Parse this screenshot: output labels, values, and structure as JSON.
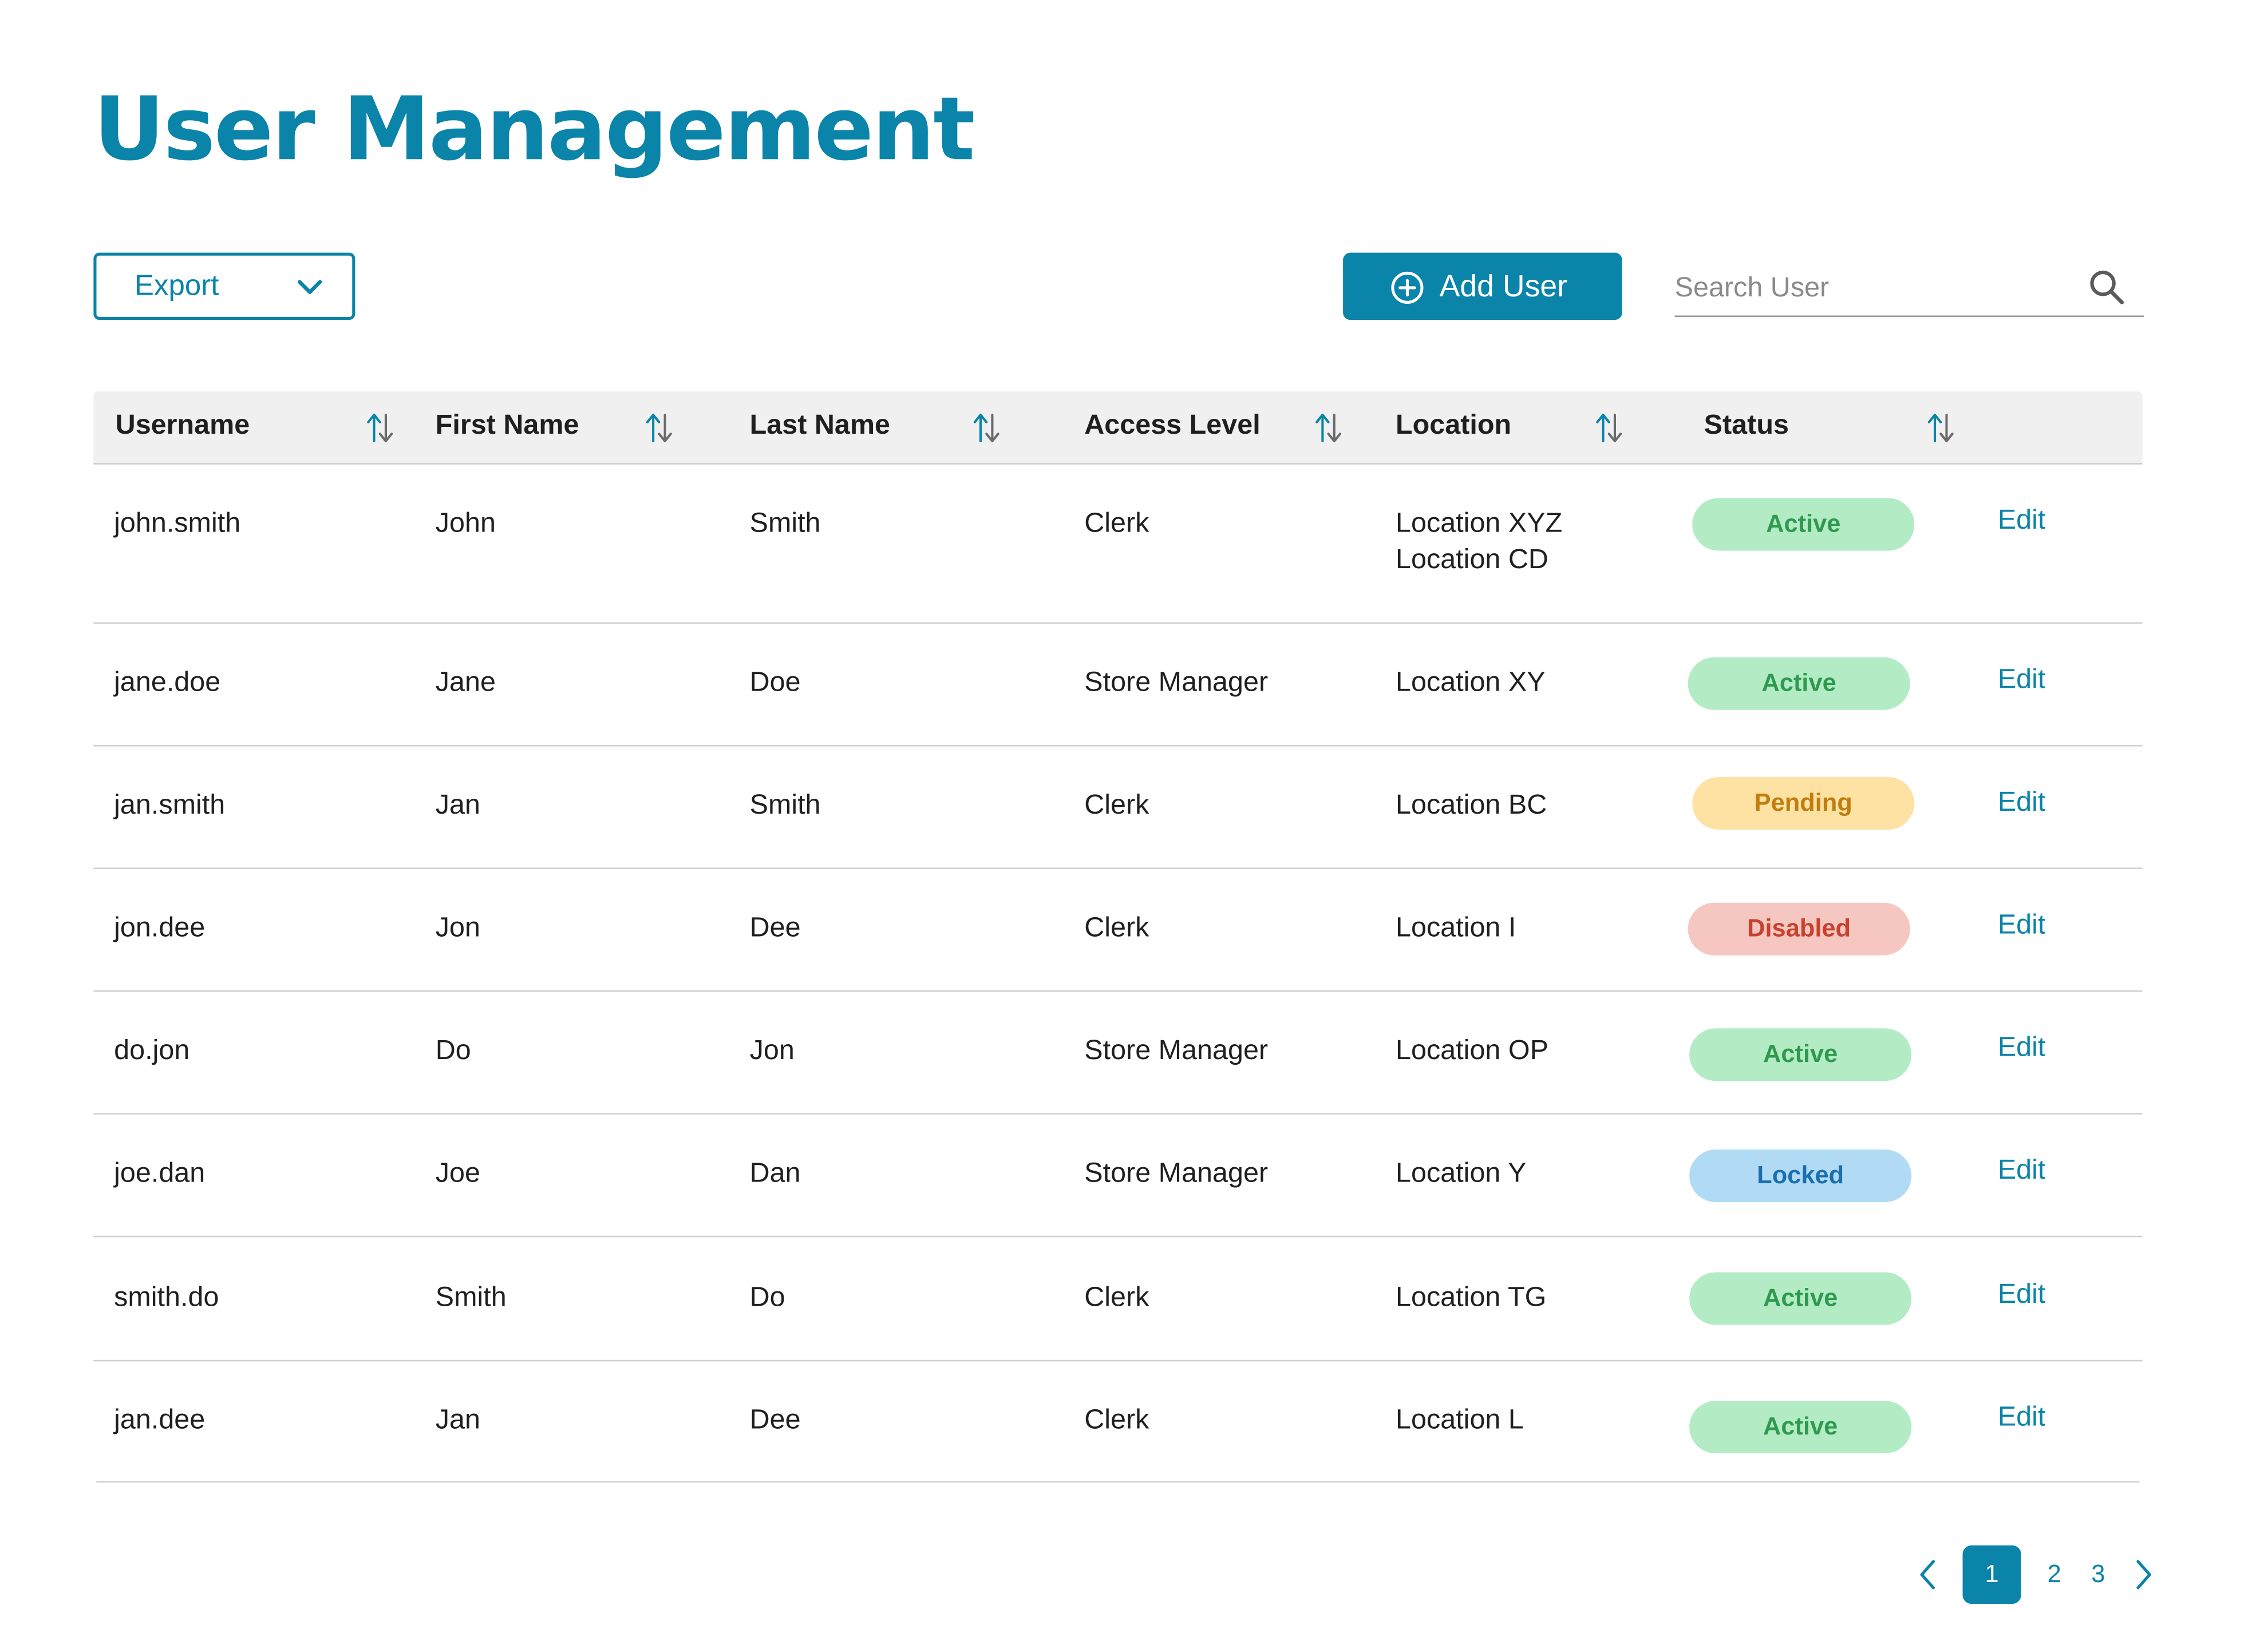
{
  "title": "User Management",
  "toolbar": {
    "export_label": "Export",
    "add_user_label": "Add User",
    "search_placeholder": "Search User"
  },
  "colors": {
    "accent": "#0a84a8",
    "status_active_bg": "#b3ebc4",
    "status_active_fg": "#2f9a4f",
    "status_pending_bg": "#fde2a3",
    "status_pending_fg": "#c17d0e",
    "status_disabled_bg": "#f6c7c1",
    "status_disabled_fg": "#c8412e",
    "status_locked_bg": "#b1dbf5",
    "status_locked_fg": "#1a6fae"
  },
  "table": {
    "columns": [
      "Username",
      "First Name",
      "Last Name",
      "Access Level",
      "Location",
      "Status"
    ],
    "edit_label": "Edit",
    "rows": [
      {
        "username": "john.smith",
        "first": "John",
        "last": "Smith",
        "access": "Clerk",
        "location": "Location XYZ",
        "location2": "Location CD",
        "status": "Active",
        "status_kind": "active"
      },
      {
        "username": "jane.doe",
        "first": "Jane",
        "last": "Doe",
        "access": "Store Manager",
        "location": "Location XY",
        "status": "Active",
        "status_kind": "active"
      },
      {
        "username": "jan.smith",
        "first": "Jan",
        "last": "Smith",
        "access": "Clerk",
        "location": "Location BC",
        "status": "Pending",
        "status_kind": "pending"
      },
      {
        "username": "jon.dee",
        "first": "Jon",
        "last": "Dee",
        "access": "Clerk",
        "location": "Location I",
        "status": "Disabled",
        "status_kind": "disabled"
      },
      {
        "username": "do.jon",
        "first": "Do",
        "last": "Jon",
        "access": "Store Manager",
        "location": "Location OP",
        "status": "Active",
        "status_kind": "active"
      },
      {
        "username": "joe.dan",
        "first": "Joe",
        "last": "Dan",
        "access": "Store Manager",
        "location": "Location Y",
        "status": "Locked",
        "status_kind": "locked"
      },
      {
        "username": "smith.do",
        "first": "Smith",
        "last": "Do",
        "access": "Clerk",
        "location": "Location TG",
        "status": "Active",
        "status_kind": "active"
      },
      {
        "username": "jan.dee",
        "first": "Jan",
        "last": "Dee",
        "access": "Clerk",
        "location": "Location L",
        "status": "Active",
        "status_kind": "active"
      }
    ]
  },
  "pagination": {
    "pages": [
      "1",
      "2",
      "3"
    ],
    "current": "1"
  },
  "icons": {
    "export_caret": "chevron-down-icon",
    "add": "plus-circle-icon",
    "search": "search-icon",
    "sort": "sort-arrows-icon",
    "prev": "chevron-left-icon",
    "next": "chevron-right-icon"
  }
}
